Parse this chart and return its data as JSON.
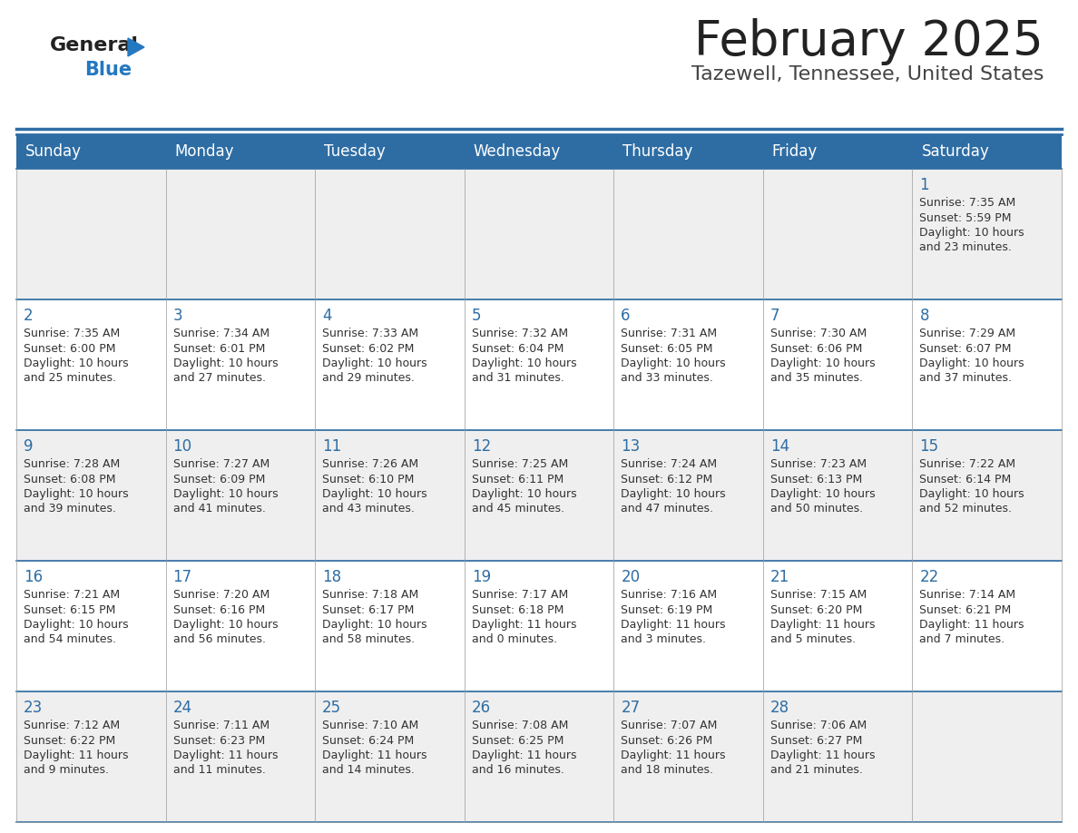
{
  "title": "February 2025",
  "subtitle": "Tazewell, Tennessee, United States",
  "header_bg": "#2e6da4",
  "header_text": "#ffffff",
  "day_names": [
    "Sunday",
    "Monday",
    "Tuesday",
    "Wednesday",
    "Thursday",
    "Friday",
    "Saturday"
  ],
  "row_bg_odd": "#efefef",
  "row_bg_even": "#ffffff",
  "cell_border": "#aaaaaa",
  "title_color": "#222222",
  "subtitle_color": "#444444",
  "day_num_color": "#2e6da4",
  "cell_text_color": "#333333",
  "logo_general_color": "#222222",
  "logo_blue_color": "#2478c0",
  "logo_triangle_color": "#2478c0",
  "calendar": [
    [
      {
        "day": "",
        "sunrise": "",
        "sunset": "",
        "daylight_h": "",
        "daylight_m": ""
      },
      {
        "day": "",
        "sunrise": "",
        "sunset": "",
        "daylight_h": "",
        "daylight_m": ""
      },
      {
        "day": "",
        "sunrise": "",
        "sunset": "",
        "daylight_h": "",
        "daylight_m": ""
      },
      {
        "day": "",
        "sunrise": "",
        "sunset": "",
        "daylight_h": "",
        "daylight_m": ""
      },
      {
        "day": "",
        "sunrise": "",
        "sunset": "",
        "daylight_h": "",
        "daylight_m": ""
      },
      {
        "day": "",
        "sunrise": "",
        "sunset": "",
        "daylight_h": "",
        "daylight_m": ""
      },
      {
        "day": "1",
        "sunrise": "7:35 AM",
        "sunset": "5:59 PM",
        "daylight_h": "10 hours",
        "daylight_m": "and 23 minutes."
      }
    ],
    [
      {
        "day": "2",
        "sunrise": "7:35 AM",
        "sunset": "6:00 PM",
        "daylight_h": "10 hours",
        "daylight_m": "and 25 minutes."
      },
      {
        "day": "3",
        "sunrise": "7:34 AM",
        "sunset": "6:01 PM",
        "daylight_h": "10 hours",
        "daylight_m": "and 27 minutes."
      },
      {
        "day": "4",
        "sunrise": "7:33 AM",
        "sunset": "6:02 PM",
        "daylight_h": "10 hours",
        "daylight_m": "and 29 minutes."
      },
      {
        "day": "5",
        "sunrise": "7:32 AM",
        "sunset": "6:04 PM",
        "daylight_h": "10 hours",
        "daylight_m": "and 31 minutes."
      },
      {
        "day": "6",
        "sunrise": "7:31 AM",
        "sunset": "6:05 PM",
        "daylight_h": "10 hours",
        "daylight_m": "and 33 minutes."
      },
      {
        "day": "7",
        "sunrise": "7:30 AM",
        "sunset": "6:06 PM",
        "daylight_h": "10 hours",
        "daylight_m": "and 35 minutes."
      },
      {
        "day": "8",
        "sunrise": "7:29 AM",
        "sunset": "6:07 PM",
        "daylight_h": "10 hours",
        "daylight_m": "and 37 minutes."
      }
    ],
    [
      {
        "day": "9",
        "sunrise": "7:28 AM",
        "sunset": "6:08 PM",
        "daylight_h": "10 hours",
        "daylight_m": "and 39 minutes."
      },
      {
        "day": "10",
        "sunrise": "7:27 AM",
        "sunset": "6:09 PM",
        "daylight_h": "10 hours",
        "daylight_m": "and 41 minutes."
      },
      {
        "day": "11",
        "sunrise": "7:26 AM",
        "sunset": "6:10 PM",
        "daylight_h": "10 hours",
        "daylight_m": "and 43 minutes."
      },
      {
        "day": "12",
        "sunrise": "7:25 AM",
        "sunset": "6:11 PM",
        "daylight_h": "10 hours",
        "daylight_m": "and 45 minutes."
      },
      {
        "day": "13",
        "sunrise": "7:24 AM",
        "sunset": "6:12 PM",
        "daylight_h": "10 hours",
        "daylight_m": "and 47 minutes."
      },
      {
        "day": "14",
        "sunrise": "7:23 AM",
        "sunset": "6:13 PM",
        "daylight_h": "10 hours",
        "daylight_m": "and 50 minutes."
      },
      {
        "day": "15",
        "sunrise": "7:22 AM",
        "sunset": "6:14 PM",
        "daylight_h": "10 hours",
        "daylight_m": "and 52 minutes."
      }
    ],
    [
      {
        "day": "16",
        "sunrise": "7:21 AM",
        "sunset": "6:15 PM",
        "daylight_h": "10 hours",
        "daylight_m": "and 54 minutes."
      },
      {
        "day": "17",
        "sunrise": "7:20 AM",
        "sunset": "6:16 PM",
        "daylight_h": "10 hours",
        "daylight_m": "and 56 minutes."
      },
      {
        "day": "18",
        "sunrise": "7:18 AM",
        "sunset": "6:17 PM",
        "daylight_h": "10 hours",
        "daylight_m": "and 58 minutes."
      },
      {
        "day": "19",
        "sunrise": "7:17 AM",
        "sunset": "6:18 PM",
        "daylight_h": "11 hours",
        "daylight_m": "and 0 minutes."
      },
      {
        "day": "20",
        "sunrise": "7:16 AM",
        "sunset": "6:19 PM",
        "daylight_h": "11 hours",
        "daylight_m": "and 3 minutes."
      },
      {
        "day": "21",
        "sunrise": "7:15 AM",
        "sunset": "6:20 PM",
        "daylight_h": "11 hours",
        "daylight_m": "and 5 minutes."
      },
      {
        "day": "22",
        "sunrise": "7:14 AM",
        "sunset": "6:21 PM",
        "daylight_h": "11 hours",
        "daylight_m": "and 7 minutes."
      }
    ],
    [
      {
        "day": "23",
        "sunrise": "7:12 AM",
        "sunset": "6:22 PM",
        "daylight_h": "11 hours",
        "daylight_m": "and 9 minutes."
      },
      {
        "day": "24",
        "sunrise": "7:11 AM",
        "sunset": "6:23 PM",
        "daylight_h": "11 hours",
        "daylight_m": "and 11 minutes."
      },
      {
        "day": "25",
        "sunrise": "7:10 AM",
        "sunset": "6:24 PM",
        "daylight_h": "11 hours",
        "daylight_m": "and 14 minutes."
      },
      {
        "day": "26",
        "sunrise": "7:08 AM",
        "sunset": "6:25 PM",
        "daylight_h": "11 hours",
        "daylight_m": "and 16 minutes."
      },
      {
        "day": "27",
        "sunrise": "7:07 AM",
        "sunset": "6:26 PM",
        "daylight_h": "11 hours",
        "daylight_m": "and 18 minutes."
      },
      {
        "day": "28",
        "sunrise": "7:06 AM",
        "sunset": "6:27 PM",
        "daylight_h": "11 hours",
        "daylight_m": "and 21 minutes."
      },
      {
        "day": "",
        "sunrise": "",
        "sunset": "",
        "daylight_h": "",
        "daylight_m": ""
      }
    ]
  ]
}
